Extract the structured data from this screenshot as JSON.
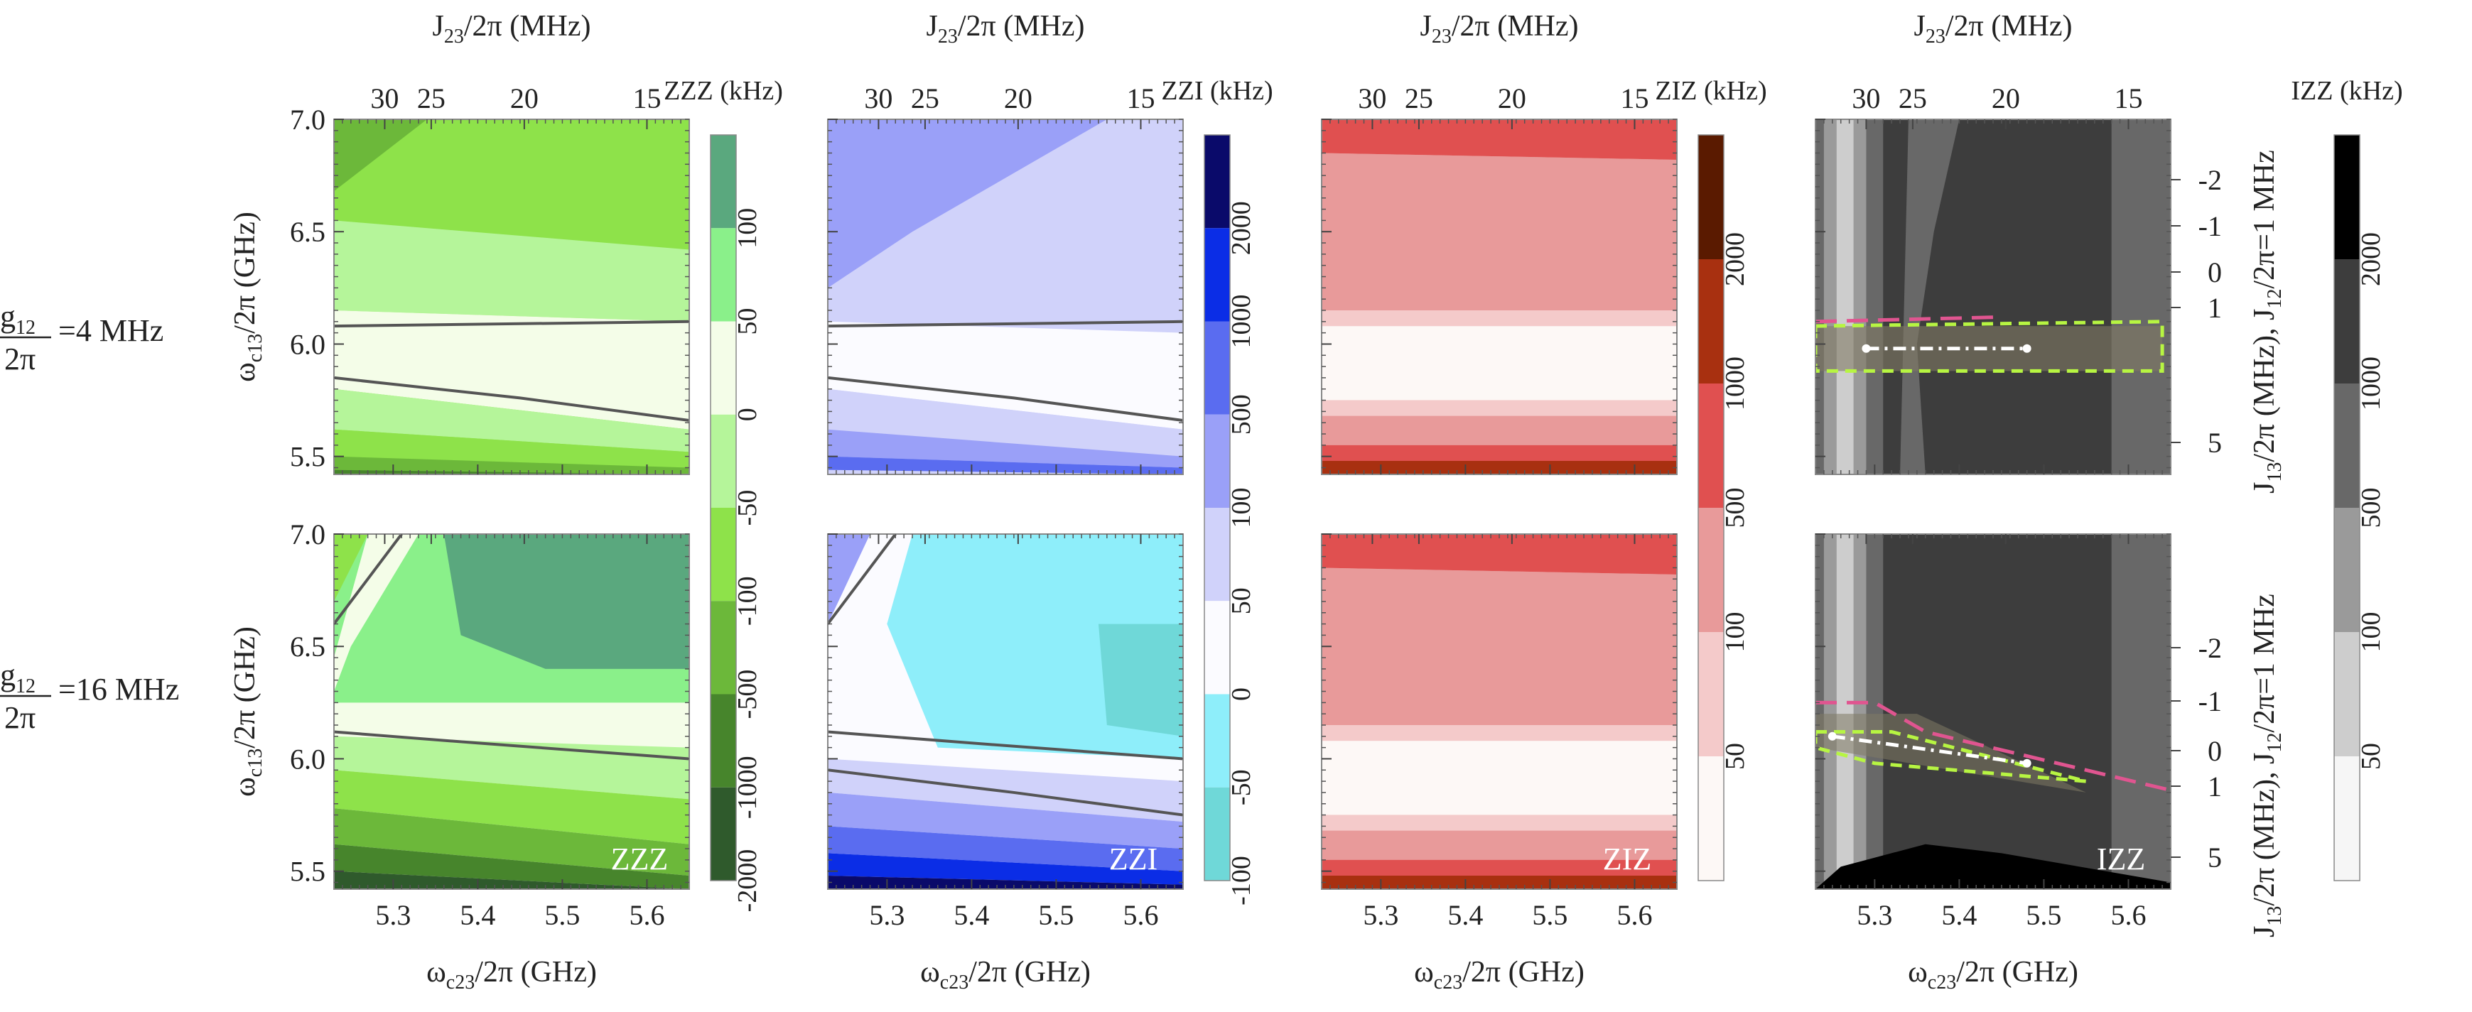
{
  "chart_data": {
    "type": "contour",
    "row_labels": [
      {
        "num": "g",
        "sub": "12",
        "den": "2π",
        "value": "=4 MHz"
      },
      {
        "num": "g",
        "sub": "12",
        "den": "2π",
        "value": "=16 MHz"
      }
    ],
    "x_bottom": {
      "label": "ω",
      "label_sub": "c23",
      "label_rest": "/2π (GHz)",
      "range": [
        5.23,
        5.65
      ],
      "ticks": [
        5.3,
        5.4,
        5.5,
        5.6
      ],
      "tick_labels": [
        "5.3",
        "5.4",
        "5.5",
        "5.6"
      ]
    },
    "x_top": {
      "label": "J",
      "label_sub": "23",
      "label_rest": "/2π (MHz)",
      "ticks": [
        30,
        25,
        20,
        15
      ],
      "tick_labels": [
        "30",
        "25",
        "20",
        "15"
      ]
    },
    "y_left": {
      "label": "ω",
      "label_sub": "c13",
      "label_rest": "/2π (GHz)",
      "range": [
        5.42,
        7.0
      ],
      "ticks": [
        5.5,
        6.0,
        6.5,
        7.0
      ],
      "tick_labels": [
        "5.5",
        "6.0",
        "6.5",
        "7.0"
      ]
    },
    "y_right": {
      "label_top": "J",
      "label_top_sub": "13",
      "label_top_rest": "/2π (MHz), J",
      "label_top_sub2": "12",
      "label_top_rest2": "/2π=1 MHz",
      "upper_tick_labels": [
        "-2",
        "-1",
        "0",
        "1",
        "5"
      ],
      "lower_tick_labels": [
        "-2",
        "-1",
        "0",
        "1",
        "5"
      ]
    },
    "panels": [
      {
        "name": "ZZZ",
        "colorbar_title": "ZZZ (kHz)",
        "colorbar_labels": [
          "100",
          "50",
          "0",
          "-50",
          "-100",
          "-500",
          "-1000",
          "-2000"
        ],
        "colors": [
          "#5aa87e",
          "#8af08a",
          "#f4fde8",
          "#b5f59a",
          "#8ee24a",
          "#6cb83a",
          "#47852c",
          "#2f5a2c"
        ]
      },
      {
        "name": "ZZI",
        "colorbar_title": "ZZI (kHz)",
        "colorbar_labels": [
          "2000",
          "1000",
          "500",
          "100",
          "50",
          "0",
          "-50",
          "-100"
        ],
        "colors": [
          "#0a0a6a",
          "#0b2de6",
          "#5a6cf0",
          "#9aa0f8",
          "#d0d2fa",
          "#fbfbff",
          "#8eeefa",
          "#6fd8d8"
        ]
      },
      {
        "name": "ZIZ",
        "colorbar_title": "ZIZ (kHz)",
        "colorbar_labels": [
          "2000",
          "1000",
          "500",
          "100",
          "50"
        ],
        "colors": [
          "#5a1a00",
          "#a83010",
          "#e05050",
          "#e89a9a",
          "#f4caca",
          "#fdf8f6"
        ]
      },
      {
        "name": "IZZ",
        "colorbar_title": "IZZ (kHz)",
        "colorbar_labels": [
          "2000",
          "1000",
          "500",
          "100",
          "50"
        ],
        "colors": [
          "#000000",
          "#3d3d3d",
          "#686868",
          "#9a9a9a",
          "#cdcdcd",
          "#f6f6f6"
        ]
      }
    ]
  }
}
